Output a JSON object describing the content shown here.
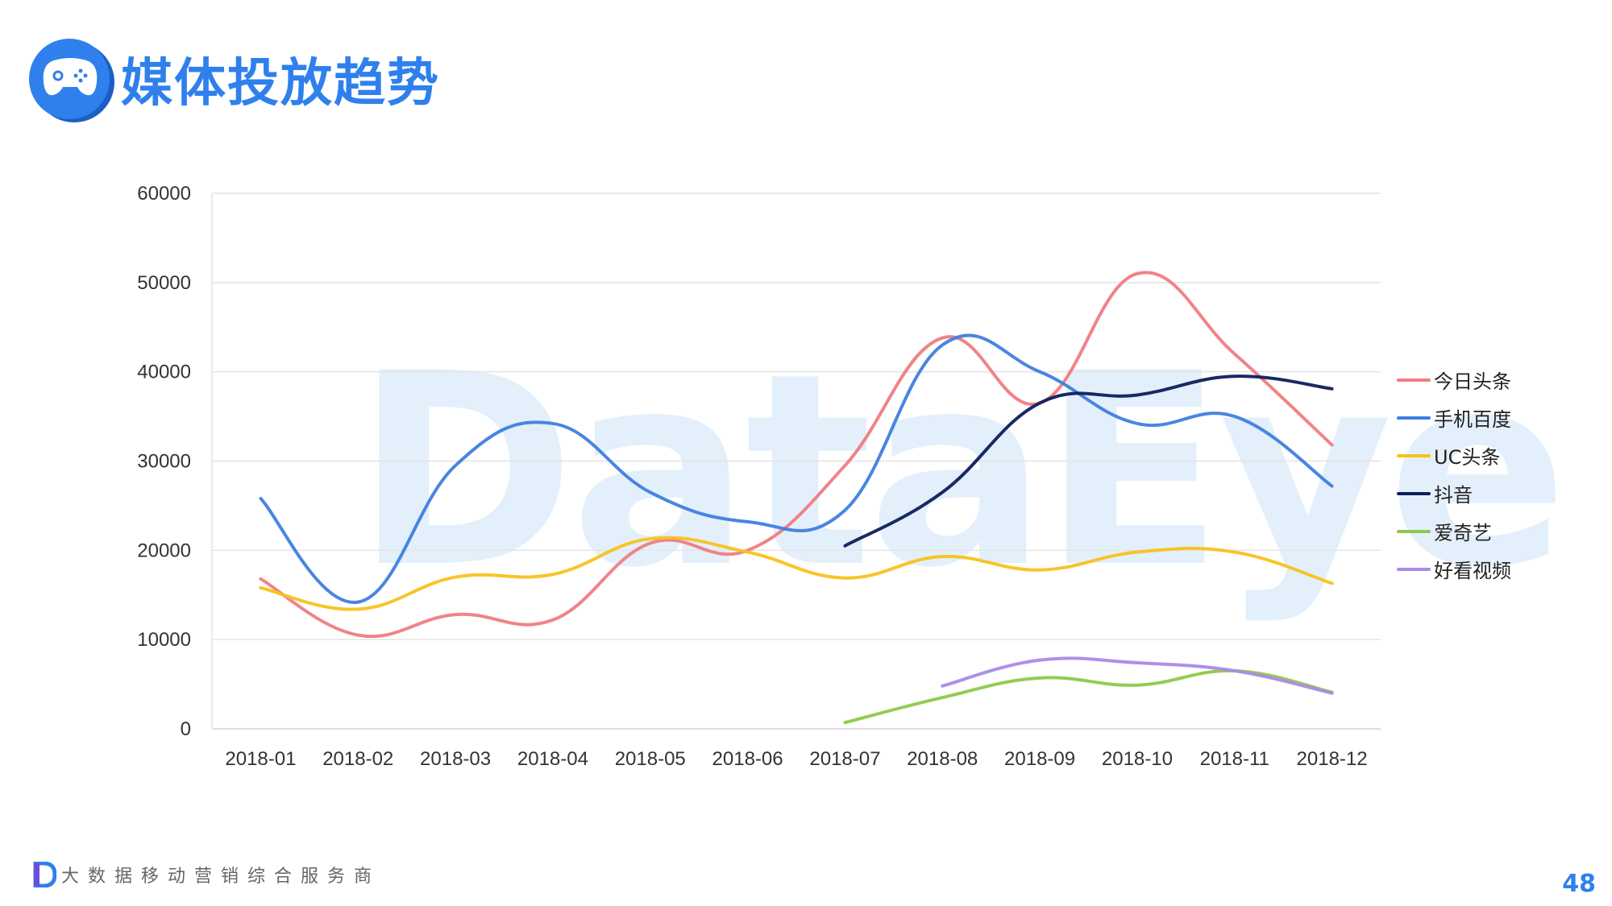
{
  "page": {
    "title": "媒体投放趋势",
    "watermark": "DataEye",
    "footer_text": "大数据移动营销综合服务商",
    "page_number": "48",
    "title_icon": "gamepad-icon",
    "accent_color": "#2f80ed"
  },
  "chart_data": {
    "type": "line",
    "categories": [
      "2018-01",
      "2018-02",
      "2018-03",
      "2018-04",
      "2018-05",
      "2018-06",
      "2018-07",
      "2018-08",
      "2018-09",
      "2018-10",
      "2018-11",
      "2018-12"
    ],
    "ylim": [
      0,
      60000
    ],
    "yticks": [
      0,
      10000,
      20000,
      30000,
      40000,
      50000,
      60000
    ],
    "grid": true,
    "legend": "right",
    "series": [
      {
        "name": "今日头条",
        "color": "#f07c82",
        "values": [
          16800,
          10500,
          12800,
          12200,
          20800,
          20000,
          29500,
          43800,
          36500,
          51000,
          42000,
          31800
        ]
      },
      {
        "name": "手机百度",
        "color": "#3f7ee0",
        "values": [
          25800,
          14200,
          29500,
          34200,
          26500,
          23200,
          24500,
          43000,
          40000,
          34200,
          35000,
          27200
        ]
      },
      {
        "name": "UC头条",
        "color": "#f8c11c",
        "values": [
          15800,
          13400,
          17000,
          17300,
          21300,
          19800,
          16900,
          19300,
          17800,
          19800,
          19800,
          16300
        ]
      },
      {
        "name": "抖音",
        "color": "#0d1f5c",
        "values": [
          null,
          null,
          null,
          null,
          null,
          null,
          20500,
          26500,
          36500,
          37400,
          39500,
          38100
        ]
      },
      {
        "name": "爱奇艺",
        "color": "#8ec84a",
        "values": [
          null,
          null,
          null,
          null,
          null,
          null,
          700,
          3500,
          5700,
          4900,
          6500,
          4100
        ]
      },
      {
        "name": "好看视频",
        "color": "#a98ae6",
        "values": [
          null,
          null,
          null,
          null,
          null,
          null,
          null,
          4800,
          7700,
          7400,
          6500,
          4000
        ]
      }
    ]
  }
}
